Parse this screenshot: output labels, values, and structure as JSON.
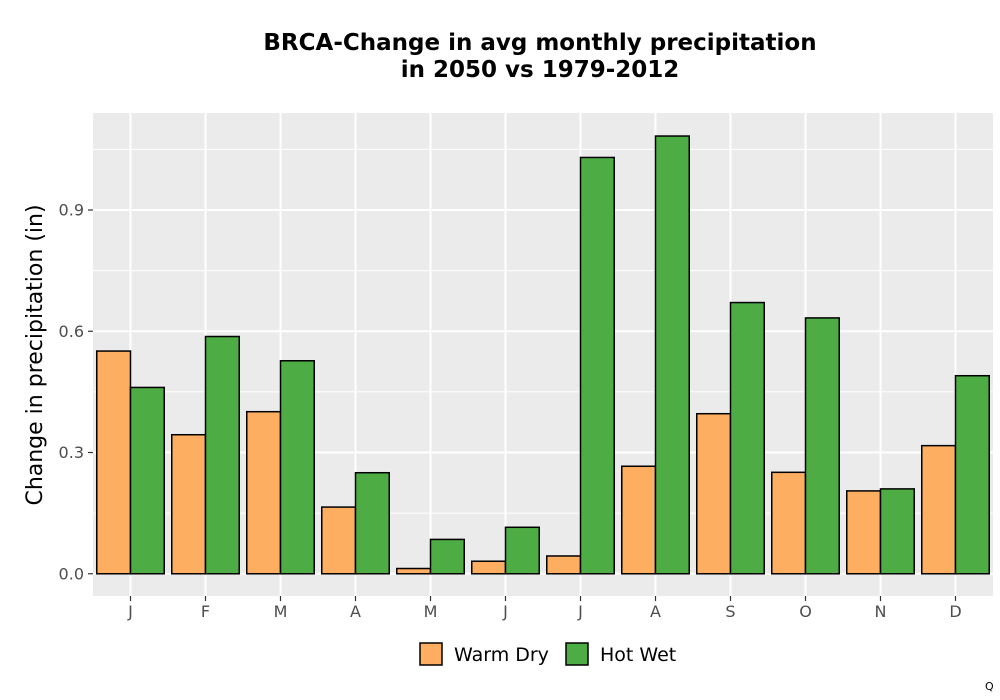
{
  "chart_data": {
    "type": "bar",
    "title_lines": [
      "BRCA-Change in avg monthly precipitation",
      "in 2050 vs 1979-2012"
    ],
    "xlabel": "",
    "ylabel": "Change in precipitation (in)",
    "categories": [
      "J",
      "F",
      "M",
      "A",
      "M",
      "J",
      "J",
      "A",
      "S",
      "O",
      "N",
      "D"
    ],
    "series": [
      {
        "name": "Warm Dry",
        "color": "#FDAE61",
        "values": [
          0.551,
          0.344,
          0.401,
          0.165,
          0.013,
          0.031,
          0.044,
          0.266,
          0.396,
          0.251,
          0.205,
          0.317
        ]
      },
      {
        "name": "Hot Wet",
        "color": "#4DAC43",
        "values": [
          0.461,
          0.587,
          0.527,
          0.25,
          0.085,
          0.115,
          1.03,
          1.083,
          0.671,
          0.633,
          0.21,
          0.49
        ]
      }
    ],
    "ylim": [
      -0.055,
      1.14
    ],
    "yticks": [
      0.0,
      0.3,
      0.6,
      0.9
    ],
    "ytick_labels": [
      "0.0",
      "0.3",
      "0.6",
      "0.9"
    ],
    "grid": true,
    "legend_position": "bottom",
    "panel_background": "#EBEBEB",
    "grid_color": "#FFFFFF",
    "bar_outline": "#000000"
  },
  "corner_mark": "Q"
}
